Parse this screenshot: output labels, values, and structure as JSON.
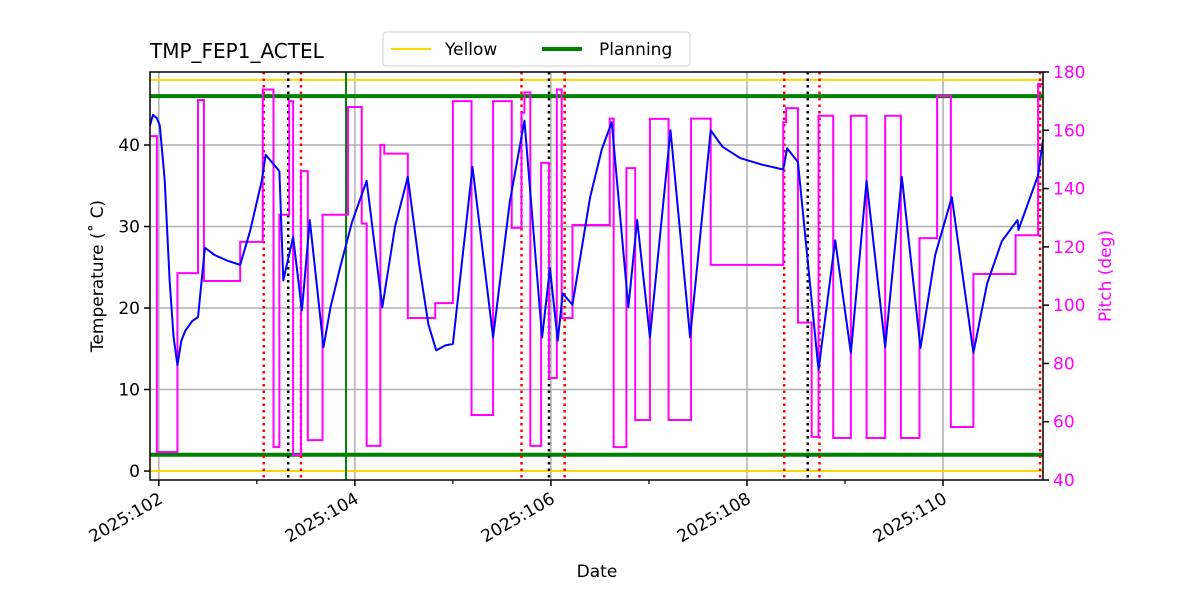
{
  "chart_data": {
    "type": "line",
    "title": "TMP_FEP1_ACTEL",
    "xlabel": "Date",
    "ylabel": "Temperature ($^\\circ$C)",
    "ylabel_display": "Temperature (˚ C)",
    "y2label": "Pitch (deg)",
    "xlim": [
      101.91,
      111.02
    ],
    "ylim": [
      -1.1,
      48.96
    ],
    "y2lim": [
      40,
      180
    ],
    "x_ticks": [
      102,
      104,
      106,
      108,
      110
    ],
    "x_tick_labels": [
      "2025:102",
      "2025:104",
      "2025:106",
      "2025:108",
      "2025:110"
    ],
    "x_minor_ticks": [
      103,
      105,
      107,
      109
    ],
    "y_ticks": [
      0,
      10,
      20,
      30,
      40
    ],
    "y_tick_labels": [
      "0",
      "10",
      "20",
      "30",
      "40"
    ],
    "y2_ticks": [
      40,
      60,
      80,
      100,
      120,
      140,
      160,
      180
    ],
    "y2_tick_labels": [
      "40",
      "60",
      "80",
      "100",
      "120",
      "140",
      "160",
      "180"
    ],
    "grid": true,
    "legend": {
      "placement": "top-center-outside",
      "entries": [
        {
          "label": "Yellow",
          "color": "#ffd700"
        },
        {
          "label": "Planning",
          "color": "#008000"
        }
      ]
    },
    "colors": {
      "temperature": "#0000ff",
      "pitch": "#ff00ff",
      "yellow": "#ffd700",
      "planning": "#008000",
      "grid": "#b0b0b0"
    },
    "limits": {
      "yellow": [
        0,
        48
      ],
      "planning": [
        2,
        46
      ]
    },
    "red_dotted_lines": [
      103.07,
      103.45,
      105.7,
      106.14,
      108.38,
      108.74,
      110.99
    ],
    "black_dotted_lines": [
      103.32,
      105.98,
      108.62
    ],
    "green_solid_lines": [
      103.91
    ],
    "temperature": [
      [
        101.91,
        42.4
      ],
      [
        101.94,
        43.7
      ],
      [
        101.98,
        43.3
      ],
      [
        102.01,
        42.4
      ],
      [
        102.06,
        35.7
      ],
      [
        102.11,
        23.4
      ],
      [
        102.15,
        16.5
      ],
      [
        102.19,
        13.0
      ],
      [
        102.23,
        16.0
      ],
      [
        102.27,
        17.2
      ],
      [
        102.34,
        18.4
      ],
      [
        102.4,
        18.9
      ],
      [
        102.47,
        27.4
      ],
      [
        102.57,
        26.5
      ],
      [
        102.7,
        25.8
      ],
      [
        102.83,
        25.3
      ],
      [
        102.93,
        29.4
      ],
      [
        103.05,
        35.6
      ],
      [
        103.09,
        38.8
      ],
      [
        103.23,
        36.8
      ],
      [
        103.27,
        23.4
      ],
      [
        103.37,
        28.7
      ],
      [
        103.46,
        19.7
      ],
      [
        103.54,
        30.8
      ],
      [
        103.68,
        15.2
      ],
      [
        103.75,
        20.0
      ],
      [
        103.85,
        25.0
      ],
      [
        103.97,
        30.5
      ],
      [
        104.12,
        35.6
      ],
      [
        104.28,
        20.1
      ],
      [
        104.41,
        30.0
      ],
      [
        104.54,
        36.1
      ],
      [
        104.66,
        25.0
      ],
      [
        104.75,
        18.0
      ],
      [
        104.83,
        14.8
      ],
      [
        104.92,
        15.4
      ],
      [
        105.0,
        15.6
      ],
      [
        105.2,
        37.3
      ],
      [
        105.41,
        16.4
      ],
      [
        105.58,
        33.0
      ],
      [
        105.73,
        43.0
      ],
      [
        105.91,
        16.4
      ],
      [
        105.99,
        24.9
      ],
      [
        106.07,
        16.0
      ],
      [
        106.12,
        21.8
      ],
      [
        106.22,
        20.4
      ],
      [
        106.4,
        33.6
      ],
      [
        106.52,
        39.5
      ],
      [
        106.62,
        42.8
      ],
      [
        106.79,
        20.1
      ],
      [
        106.88,
        30.8
      ],
      [
        107.01,
        16.4
      ],
      [
        107.22,
        41.8
      ],
      [
        107.42,
        16.4
      ],
      [
        107.63,
        41.8
      ],
      [
        107.75,
        39.8
      ],
      [
        107.93,
        38.4
      ],
      [
        108.15,
        37.6
      ],
      [
        108.37,
        37.0
      ],
      [
        108.41,
        39.6
      ],
      [
        108.52,
        37.9
      ],
      [
        108.73,
        12.4
      ],
      [
        108.9,
        28.3
      ],
      [
        109.06,
        14.5
      ],
      [
        109.22,
        35.6
      ],
      [
        109.41,
        15.2
      ],
      [
        109.58,
        36.1
      ],
      [
        109.77,
        15.1
      ],
      [
        109.92,
        26.5
      ],
      [
        110.09,
        33.6
      ],
      [
        110.31,
        14.5
      ],
      [
        110.45,
        23.0
      ],
      [
        110.6,
        28.2
      ],
      [
        110.76,
        30.8
      ],
      [
        110.77,
        29.6
      ],
      [
        110.97,
        36.3
      ],
      [
        111.02,
        40.6
      ]
    ],
    "pitch": [
      [
        101.91,
        158
      ],
      [
        101.98,
        49.6
      ],
      [
        102.19,
        111
      ],
      [
        102.4,
        170.4
      ],
      [
        102.46,
        108.3
      ],
      [
        102.83,
        121.7
      ],
      [
        103.06,
        174
      ],
      [
        103.17,
        51.3
      ],
      [
        103.23,
        131
      ],
      [
        103.33,
        170
      ],
      [
        103.37,
        48.6
      ],
      [
        103.45,
        146
      ],
      [
        103.52,
        53.7
      ],
      [
        103.67,
        131
      ],
      [
        103.93,
        168
      ],
      [
        104.07,
        128
      ],
      [
        104.12,
        51.7
      ],
      [
        104.26,
        155
      ],
      [
        104.3,
        152
      ],
      [
        104.54,
        95.6
      ],
      [
        104.82,
        100.7
      ],
      [
        105.0,
        170
      ],
      [
        105.19,
        62.3
      ],
      [
        105.41,
        170
      ],
      [
        105.6,
        126.5
      ],
      [
        105.7,
        166
      ],
      [
        105.73,
        173
      ],
      [
        105.79,
        51.7
      ],
      [
        105.9,
        148.8
      ],
      [
        105.98,
        75
      ],
      [
        106.06,
        174
      ],
      [
        106.11,
        95.6
      ],
      [
        106.22,
        127.5
      ],
      [
        106.6,
        164
      ],
      [
        106.64,
        51.3
      ],
      [
        106.77,
        147
      ],
      [
        106.86,
        60.6
      ],
      [
        107.01,
        163.9
      ],
      [
        107.2,
        60.6
      ],
      [
        107.43,
        164
      ],
      [
        107.63,
        113.8
      ],
      [
        108.37,
        162.8
      ],
      [
        108.4,
        167.6
      ],
      [
        108.52,
        94
      ],
      [
        108.66,
        54.8
      ],
      [
        108.73,
        165
      ],
      [
        108.88,
        54.4
      ],
      [
        109.06,
        165
      ],
      [
        109.22,
        54.4
      ],
      [
        109.41,
        165
      ],
      [
        109.57,
        54.4
      ],
      [
        109.76,
        123
      ],
      [
        109.94,
        171.8
      ],
      [
        110.08,
        58.2
      ],
      [
        110.31,
        110.7
      ],
      [
        110.74,
        124
      ],
      [
        110.97,
        175.9
      ],
      [
        111.02,
        175.9
      ]
    ]
  }
}
